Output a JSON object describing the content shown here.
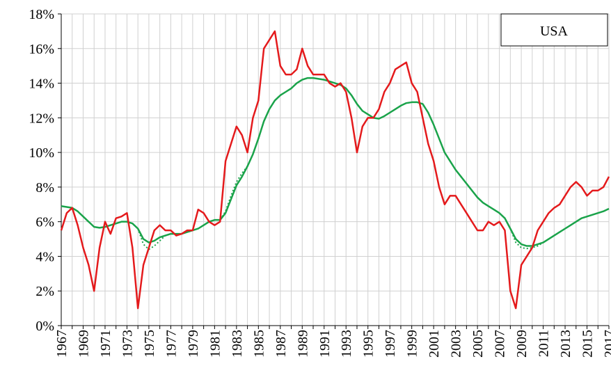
{
  "chart_data": {
    "type": "line",
    "annotation": "USA",
    "x": [
      1967,
      1967.5,
      1968,
      1968.5,
      1969,
      1969.5,
      1970,
      1970.5,
      1971,
      1971.5,
      1972,
      1972.5,
      1973,
      1973.5,
      1974,
      1974.5,
      1975,
      1975.5,
      1976,
      1976.5,
      1977,
      1977.5,
      1978,
      1978.5,
      1979,
      1979.5,
      1980,
      1980.5,
      1981,
      1981.5,
      1982,
      1982.5,
      1983,
      1983.5,
      1984,
      1984.5,
      1985,
      1985.5,
      1986,
      1986.5,
      1987,
      1987.5,
      1988,
      1988.5,
      1989,
      1989.5,
      1990,
      1990.5,
      1991,
      1991.5,
      1992,
      1992.5,
      1993,
      1993.5,
      1994,
      1994.5,
      1995,
      1995.5,
      1996,
      1996.5,
      1997,
      1997.5,
      1998,
      1998.5,
      1999,
      1999.5,
      2000,
      2000.5,
      2001,
      2001.5,
      2002,
      2002.5,
      2003,
      2003.5,
      2004,
      2004.5,
      2005,
      2005.5,
      2006,
      2006.5,
      2007,
      2007.5,
      2008,
      2008.5,
      2009,
      2009.5,
      2010,
      2010.5,
      2011,
      2011.5,
      2012,
      2012.5,
      2013,
      2013.5,
      2014,
      2014.5,
      2015,
      2015.5,
      2016,
      2016.5,
      2017
    ],
    "series": [
      {
        "color": "#e41a1c",
        "dash": "solid",
        "values": [
          5.5,
          6.5,
          6.8,
          5.8,
          4.5,
          3.5,
          2.0,
          4.5,
          6.0,
          5.3,
          6.2,
          6.3,
          6.5,
          4.5,
          1.0,
          3.5,
          4.5,
          5.5,
          5.8,
          5.5,
          5.5,
          5.2,
          5.3,
          5.5,
          5.5,
          6.7,
          6.5,
          6.0,
          5.8,
          6.0,
          9.5,
          10.5,
          11.5,
          11.0,
          10.0,
          12.0,
          13.0,
          16.0,
          16.5,
          17.0,
          15.0,
          14.5,
          14.5,
          14.8,
          16.0,
          15.0,
          14.5,
          14.5,
          14.5,
          14.0,
          13.8,
          14.0,
          13.5,
          12.0,
          10.0,
          11.5,
          12.0,
          12.0,
          12.5,
          13.5,
          14.0,
          14.8,
          15.0,
          15.2,
          14.0,
          13.5,
          12.0,
          10.5,
          9.5,
          8.0,
          7.0,
          7.5,
          7.5,
          7.0,
          6.5,
          6.0,
          5.5,
          5.5,
          6.0,
          5.8,
          6.0,
          5.5,
          2.0,
          1.0,
          3.5,
          4.0,
          4.5,
          5.5,
          6.0,
          6.5,
          6.8,
          7.0,
          7.5,
          8.0,
          8.3,
          8.0,
          7.5,
          7.8,
          7.8,
          8.0,
          8.6
        ]
      },
      {
        "color": "#1aa34a",
        "dash": "solid",
        "values": [
          6.9,
          6.85,
          6.8,
          6.6,
          6.3,
          6.0,
          5.7,
          5.65,
          5.7,
          5.8,
          5.9,
          6.0,
          6.0,
          5.9,
          5.6,
          5.0,
          4.8,
          4.9,
          5.1,
          5.2,
          5.3,
          5.3,
          5.3,
          5.4,
          5.5,
          5.6,
          5.8,
          6.0,
          6.1,
          6.1,
          6.5,
          7.3,
          8.1,
          8.6,
          9.2,
          9.9,
          10.8,
          11.8,
          12.5,
          13.0,
          13.3,
          13.5,
          13.7,
          14.0,
          14.2,
          14.3,
          14.3,
          14.25,
          14.2,
          14.1,
          14.0,
          13.9,
          13.7,
          13.3,
          12.8,
          12.4,
          12.2,
          12.0,
          11.95,
          12.1,
          12.3,
          12.5,
          12.7,
          12.85,
          12.9,
          12.9,
          12.8,
          12.3,
          11.6,
          10.8,
          10.0,
          9.5,
          9.0,
          8.6,
          8.2,
          7.8,
          7.4,
          7.1,
          6.9,
          6.7,
          6.5,
          6.2,
          5.6,
          5.0,
          4.7,
          4.6,
          4.6,
          4.7,
          4.8,
          5.0,
          5.2,
          5.4,
          5.6,
          5.8,
          6.0,
          6.2,
          6.3,
          6.4,
          6.5,
          6.6,
          6.75
        ]
      },
      {
        "color": "#1aa34a",
        "dash": "dotted",
        "values": [
          6.9,
          6.85,
          6.8,
          6.6,
          6.3,
          6.0,
          5.7,
          5.65,
          5.7,
          5.8,
          5.9,
          6.0,
          6.0,
          5.9,
          5.6,
          4.7,
          4.4,
          4.6,
          4.9,
          5.2,
          5.3,
          5.3,
          5.3,
          5.4,
          5.5,
          5.6,
          5.8,
          6.0,
          6.1,
          6.1,
          6.6,
          7.5,
          8.3,
          8.8,
          9.2,
          9.9,
          10.8,
          11.8,
          12.5,
          13.0,
          13.3,
          13.5,
          13.7,
          14.0,
          14.2,
          14.3,
          14.3,
          14.25,
          14.2,
          14.1,
          14.0,
          13.9,
          13.7,
          13.3,
          12.8,
          12.4,
          12.2,
          12.0,
          11.95,
          12.1,
          12.3,
          12.5,
          12.7,
          12.85,
          12.9,
          12.9,
          12.8,
          12.3,
          11.6,
          10.8,
          10.0,
          9.5,
          9.0,
          8.6,
          8.2,
          7.8,
          7.4,
          7.1,
          6.9,
          6.7,
          6.5,
          6.2,
          5.6,
          4.8,
          4.5,
          4.45,
          4.5,
          4.6,
          4.8,
          5.0,
          5.2,
          5.4,
          5.6,
          5.8,
          6.0,
          6.2,
          6.3,
          6.4,
          6.5,
          6.6,
          6.75
        ]
      }
    ],
    "xlim": [
      1967,
      2017
    ],
    "xticks": [
      1967,
      1969,
      1971,
      1973,
      1975,
      1977,
      1979,
      1981,
      1983,
      1985,
      1987,
      1989,
      1991,
      1993,
      1995,
      1997,
      1999,
      2001,
      2003,
      2005,
      2007,
      2009,
      2011,
      2013,
      2015,
      2017
    ],
    "xminorticks": [
      1968,
      1970,
      1972,
      1974,
      1976,
      1978,
      1980,
      1982,
      1984,
      1986,
      1988,
      1990,
      1992,
      1994,
      1996,
      1998,
      2000,
      2002,
      2004,
      2006,
      2008,
      2010,
      2012,
      2014,
      2016
    ],
    "ylim": [
      0,
      18
    ],
    "yticks": [
      {
        "value": 0,
        "label": "0%"
      },
      {
        "value": 2,
        "label": "2%"
      },
      {
        "value": 4,
        "label": "4%"
      },
      {
        "value": 6,
        "label": "6%"
      },
      {
        "value": 8,
        "label": "8%"
      },
      {
        "value": 10,
        "label": "10%"
      },
      {
        "value": 12,
        "label": "12%"
      },
      {
        "value": 14,
        "label": "14%"
      },
      {
        "value": 16,
        "label": "16%"
      },
      {
        "value": 18,
        "label": "18%"
      }
    ],
    "grid": true
  }
}
